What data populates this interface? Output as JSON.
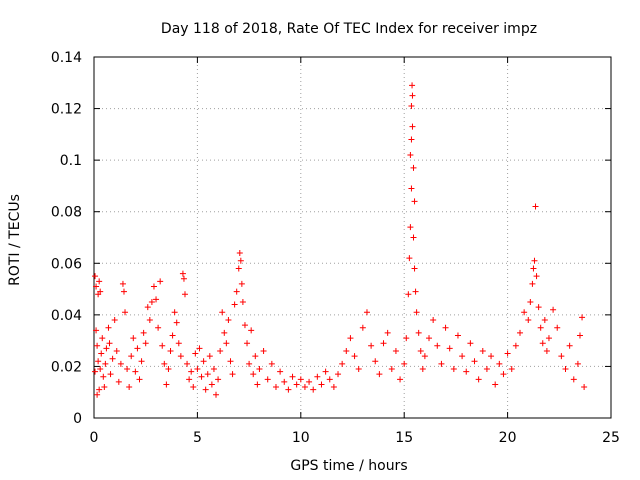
{
  "chart_data": {
    "type": "scatter",
    "title": "Day 118 of 2018, Rate Of TEC Index for receiver impz",
    "xlabel": "GPS time / hours",
    "ylabel": "ROTI / TECUs",
    "xlim": [
      0,
      25
    ],
    "ylim": [
      0,
      0.14
    ],
    "xticks": [
      0,
      5,
      10,
      15,
      20,
      25
    ],
    "xtick_labels": [
      "0",
      "5",
      "10",
      "15",
      "20",
      "25"
    ],
    "yticks": [
      0,
      0.02,
      0.04,
      0.06,
      0.08,
      0.1,
      0.12,
      0.14
    ],
    "ytick_labels": [
      "0",
      "0.02",
      "0.04",
      "0.06",
      "0.08",
      "0.1",
      "0.12",
      "0.14"
    ],
    "grid": true,
    "marker": "+",
    "color": "#ff0000",
    "series": [
      {
        "name": "ROTI",
        "points": [
          [
            0.05,
            0.055
          ],
          [
            0.1,
            0.051
          ],
          [
            0.2,
            0.048
          ],
          [
            0.25,
            0.053
          ],
          [
            0.3,
            0.049
          ],
          [
            0.1,
            0.034
          ],
          [
            0.15,
            0.028
          ],
          [
            0.2,
            0.022
          ],
          [
            0.3,
            0.019
          ],
          [
            0.35,
            0.025
          ],
          [
            0.4,
            0.031
          ],
          [
            0.45,
            0.016
          ],
          [
            0.5,
            0.012
          ],
          [
            0.55,
            0.021
          ],
          [
            0.6,
            0.027
          ],
          [
            0.15,
            0.009
          ],
          [
            0.25,
            0.011
          ],
          [
            0.05,
            0.018
          ],
          [
            0.7,
            0.035
          ],
          [
            0.75,
            0.029
          ],
          [
            0.8,
            0.017
          ],
          [
            0.9,
            0.023
          ],
          [
            1.0,
            0.038
          ],
          [
            1.1,
            0.026
          ],
          [
            1.2,
            0.014
          ],
          [
            1.3,
            0.021
          ],
          [
            1.4,
            0.052
          ],
          [
            1.45,
            0.049
          ],
          [
            1.5,
            0.041
          ],
          [
            1.6,
            0.019
          ],
          [
            1.7,
            0.012
          ],
          [
            1.8,
            0.024
          ],
          [
            1.9,
            0.031
          ],
          [
            2.0,
            0.018
          ],
          [
            2.1,
            0.027
          ],
          [
            2.2,
            0.015
          ],
          [
            2.3,
            0.022
          ],
          [
            2.4,
            0.033
          ],
          [
            2.5,
            0.029
          ],
          [
            2.6,
            0.043
          ],
          [
            2.7,
            0.038
          ],
          [
            2.8,
            0.045
          ],
          [
            2.9,
            0.051
          ],
          [
            3.0,
            0.046
          ],
          [
            3.1,
            0.035
          ],
          [
            3.2,
            0.053
          ],
          [
            3.3,
            0.028
          ],
          [
            3.4,
            0.021
          ],
          [
            3.5,
            0.013
          ],
          [
            3.6,
            0.019
          ],
          [
            3.7,
            0.026
          ],
          [
            3.8,
            0.032
          ],
          [
            3.9,
            0.041
          ],
          [
            4.0,
            0.037
          ],
          [
            4.1,
            0.029
          ],
          [
            4.2,
            0.024
          ],
          [
            4.3,
            0.056
          ],
          [
            4.35,
            0.054
          ],
          [
            4.4,
            0.048
          ],
          [
            4.5,
            0.021
          ],
          [
            4.6,
            0.015
          ],
          [
            4.7,
            0.018
          ],
          [
            4.8,
            0.012
          ],
          [
            4.9,
            0.025
          ],
          [
            5.0,
            0.019
          ],
          [
            5.1,
            0.027
          ],
          [
            5.2,
            0.016
          ],
          [
            5.3,
            0.022
          ],
          [
            5.4,
            0.011
          ],
          [
            5.5,
            0.017
          ],
          [
            5.6,
            0.024
          ],
          [
            5.7,
            0.013
          ],
          [
            5.8,
            0.019
          ],
          [
            5.9,
            0.009
          ],
          [
            6.0,
            0.015
          ],
          [
            6.1,
            0.026
          ],
          [
            6.2,
            0.041
          ],
          [
            6.3,
            0.033
          ],
          [
            6.4,
            0.029
          ],
          [
            6.5,
            0.038
          ],
          [
            6.6,
            0.022
          ],
          [
            6.7,
            0.017
          ],
          [
            6.8,
            0.044
          ],
          [
            6.9,
            0.049
          ],
          [
            7.0,
            0.058
          ],
          [
            7.05,
            0.064
          ],
          [
            7.1,
            0.061
          ],
          [
            7.15,
            0.052
          ],
          [
            7.2,
            0.045
          ],
          [
            7.3,
            0.036
          ],
          [
            7.4,
            0.029
          ],
          [
            7.5,
            0.021
          ],
          [
            7.6,
            0.034
          ],
          [
            7.7,
            0.017
          ],
          [
            7.8,
            0.024
          ],
          [
            7.9,
            0.013
          ],
          [
            8.0,
            0.019
          ],
          [
            8.2,
            0.026
          ],
          [
            8.4,
            0.015
          ],
          [
            8.6,
            0.021
          ],
          [
            8.8,
            0.012
          ],
          [
            9.0,
            0.018
          ],
          [
            9.2,
            0.014
          ],
          [
            9.4,
            0.011
          ],
          [
            9.6,
            0.016
          ],
          [
            9.8,
            0.013
          ],
          [
            10.0,
            0.015
          ],
          [
            10.2,
            0.012
          ],
          [
            10.4,
            0.014
          ],
          [
            10.6,
            0.011
          ],
          [
            10.8,
            0.016
          ],
          [
            11.0,
            0.013
          ],
          [
            11.2,
            0.018
          ],
          [
            11.4,
            0.015
          ],
          [
            11.6,
            0.012
          ],
          [
            11.8,
            0.017
          ],
          [
            12.0,
            0.021
          ],
          [
            12.2,
            0.026
          ],
          [
            12.4,
            0.031
          ],
          [
            12.6,
            0.024
          ],
          [
            12.8,
            0.019
          ],
          [
            13.0,
            0.035
          ],
          [
            13.2,
            0.041
          ],
          [
            13.4,
            0.028
          ],
          [
            13.6,
            0.022
          ],
          [
            13.8,
            0.017
          ],
          [
            14.0,
            0.029
          ],
          [
            14.2,
            0.033
          ],
          [
            14.4,
            0.019
          ],
          [
            14.6,
            0.026
          ],
          [
            14.8,
            0.015
          ],
          [
            15.0,
            0.021
          ],
          [
            15.1,
            0.031
          ],
          [
            15.2,
            0.048
          ],
          [
            15.25,
            0.062
          ],
          [
            15.3,
            0.074
          ],
          [
            15.35,
            0.089
          ],
          [
            15.3,
            0.102
          ],
          [
            15.35,
            0.108
          ],
          [
            15.4,
            0.113
          ],
          [
            15.35,
            0.121
          ],
          [
            15.4,
            0.125
          ],
          [
            15.38,
            0.129
          ],
          [
            15.45,
            0.097
          ],
          [
            15.5,
            0.084
          ],
          [
            15.45,
            0.07
          ],
          [
            15.5,
            0.058
          ],
          [
            15.55,
            0.049
          ],
          [
            15.6,
            0.041
          ],
          [
            15.7,
            0.033
          ],
          [
            15.8,
            0.026
          ],
          [
            15.9,
            0.019
          ],
          [
            16.0,
            0.024
          ],
          [
            16.2,
            0.031
          ],
          [
            16.4,
            0.038
          ],
          [
            16.6,
            0.028
          ],
          [
            16.8,
            0.021
          ],
          [
            17.0,
            0.035
          ],
          [
            17.2,
            0.027
          ],
          [
            17.4,
            0.019
          ],
          [
            17.6,
            0.032
          ],
          [
            17.8,
            0.024
          ],
          [
            18.0,
            0.018
          ],
          [
            18.2,
            0.029
          ],
          [
            18.4,
            0.022
          ],
          [
            18.6,
            0.015
          ],
          [
            18.8,
            0.026
          ],
          [
            19.0,
            0.019
          ],
          [
            19.2,
            0.024
          ],
          [
            19.4,
            0.013
          ],
          [
            19.6,
            0.021
          ],
          [
            19.8,
            0.017
          ],
          [
            20.0,
            0.025
          ],
          [
            20.2,
            0.019
          ],
          [
            20.4,
            0.028
          ],
          [
            20.6,
            0.033
          ],
          [
            20.8,
            0.041
          ],
          [
            21.0,
            0.038
          ],
          [
            21.1,
            0.045
          ],
          [
            21.2,
            0.052
          ],
          [
            21.25,
            0.058
          ],
          [
            21.3,
            0.061
          ],
          [
            21.35,
            0.082
          ],
          [
            21.4,
            0.055
          ],
          [
            21.5,
            0.043
          ],
          [
            21.6,
            0.035
          ],
          [
            21.7,
            0.029
          ],
          [
            21.8,
            0.038
          ],
          [
            21.9,
            0.026
          ],
          [
            22.0,
            0.031
          ],
          [
            22.2,
            0.042
          ],
          [
            22.4,
            0.035
          ],
          [
            22.6,
            0.024
          ],
          [
            22.8,
            0.019
          ],
          [
            23.0,
            0.028
          ],
          [
            23.2,
            0.015
          ],
          [
            23.4,
            0.021
          ],
          [
            23.5,
            0.032
          ],
          [
            23.6,
            0.039
          ],
          [
            23.7,
            0.012
          ]
        ]
      }
    ]
  }
}
